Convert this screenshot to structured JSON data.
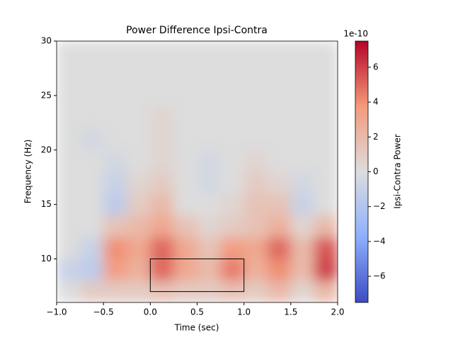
{
  "chart_data": {
    "type": "heatmap",
    "title": "Power Difference Ipsi-Contra",
    "x_label": "Time (sec)",
    "y_label": "Frequency (Hz)",
    "colorbar_label": "Ipsi-Contra Power",
    "colorbar_offset": "1e-10",
    "colormap": "coolwarm",
    "x_bins": [
      -1,
      -0.75,
      -0.5,
      -0.25,
      0,
      0.25,
      0.5,
      0.75,
      1,
      1.25,
      1.5,
      1.75,
      2
    ],
    "y_bins": [
      6,
      8,
      10,
      12,
      14,
      16,
      18,
      20,
      22,
      24,
      26,
      28,
      30
    ],
    "z": [
      [
        0,
        1,
        1,
        1,
        1.5,
        1,
        1,
        1.5,
        1,
        2,
        0.5,
        2
      ],
      [
        -1,
        -1.5,
        3.5,
        2.5,
        5,
        3,
        2,
        4.5,
        2.5,
        4,
        2,
        6
      ],
      [
        0,
        -1,
        4,
        3,
        5,
        3,
        1.5,
        3.5,
        3,
        5,
        2,
        5.5
      ],
      [
        0,
        0,
        1.5,
        2,
        3,
        1.5,
        0.5,
        1,
        1.5,
        2.5,
        0.5,
        2
      ],
      [
        0,
        0,
        -1.5,
        1,
        2,
        0,
        0,
        0.5,
        1.5,
        1.5,
        -1,
        0
      ],
      [
        0,
        0,
        -1,
        0.5,
        1,
        0,
        -0.5,
        0,
        1,
        0.5,
        -0.5,
        0
      ],
      [
        0,
        0,
        -0.5,
        0,
        0.5,
        0,
        -0.5,
        0,
        0.5,
        0,
        0,
        0
      ],
      [
        0,
        -0.5,
        0,
        0,
        0.5,
        0,
        0,
        0,
        0,
        0,
        0,
        0
      ],
      [
        0,
        0,
        0,
        0,
        0.5,
        0,
        0,
        0,
        0,
        0,
        0,
        0
      ],
      [
        0,
        0,
        0,
        0,
        0,
        0,
        0,
        0,
        0,
        0,
        0,
        0
      ],
      [
        0,
        0,
        0,
        0,
        0,
        0,
        0,
        0,
        0,
        0,
        0,
        0
      ],
      [
        0,
        0,
        0,
        0,
        0,
        0,
        0,
        0,
        0,
        0,
        0,
        0
      ]
    ],
    "vlim": [
      -7.5,
      7.5
    ],
    "xlim": [
      -1,
      2
    ],
    "ylim": [
      6,
      30
    ],
    "xticks": [
      {
        "value": -1,
        "label": "−1.0"
      },
      {
        "value": -0.5,
        "label": "−0.5"
      },
      {
        "value": 0,
        "label": "0.0"
      },
      0.5,
      {
        "value": 1,
        "label": "1.0"
      },
      1.5,
      {
        "value": 2,
        "label": "2.0"
      }
    ],
    "yticks": [
      10,
      15,
      20,
      25,
      30
    ],
    "cticks": [
      {
        "value": -6,
        "label": "−6"
      },
      {
        "value": -4,
        "label": "−4"
      },
      {
        "value": -2,
        "label": "−2"
      },
      0,
      2,
      4,
      6
    ],
    "rectangle": {
      "x": [
        0,
        1
      ],
      "y": [
        7,
        10
      ],
      "color": "#000000"
    }
  }
}
